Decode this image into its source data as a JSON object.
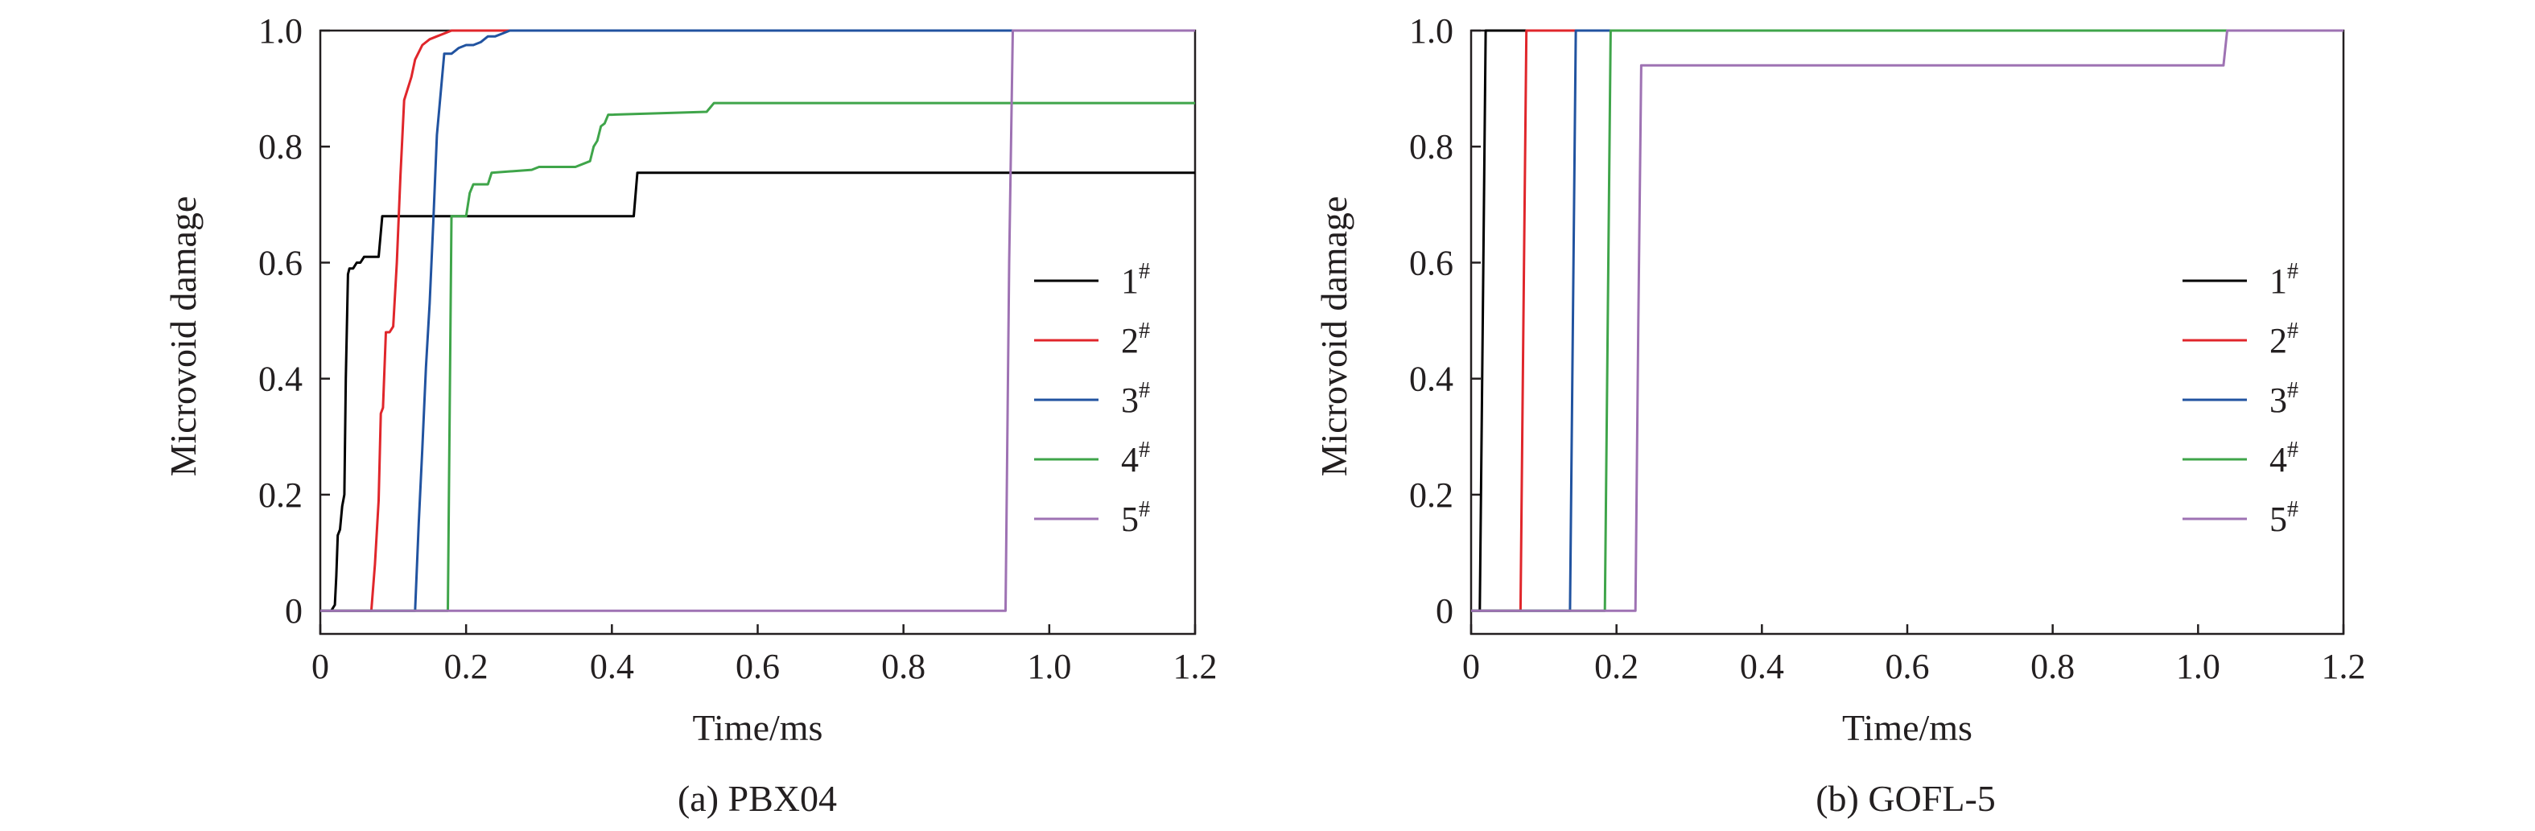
{
  "chart_data": [
    {
      "type": "line",
      "title": "(a) PBX04",
      "xlabel": "Time/ms",
      "ylabel": "Microvoid damage",
      "xlim": [
        0,
        1.2
      ],
      "ylim": [
        -0.04,
        1.0
      ],
      "xticks": [
        "0",
        "0.2",
        "0.4",
        "0.6",
        "0.8",
        "1.0",
        "1.2"
      ],
      "yticks": [
        "0",
        "0.2",
        "0.4",
        "0.6",
        "0.8",
        "1.0"
      ],
      "legend_position": "right-middle",
      "series": [
        {
          "name": "1",
          "color": "#000000",
          "x": [
            0,
            0.015,
            0.02,
            0.022,
            0.024,
            0.027,
            0.03,
            0.033,
            0.035,
            0.038,
            0.04,
            0.045,
            0.05,
            0.055,
            0.06,
            0.065,
            0.07,
            0.08,
            0.085,
            0.09,
            0.1,
            0.43,
            0.435,
            1.2
          ],
          "y": [
            0,
            0,
            0.01,
            0.06,
            0.13,
            0.14,
            0.18,
            0.2,
            0.4,
            0.58,
            0.59,
            0.59,
            0.6,
            0.6,
            0.61,
            0.61,
            0.61,
            0.61,
            0.68,
            0.68,
            0.68,
            0.68,
            0.755,
            0.755
          ]
        },
        {
          "name": "2",
          "color": "#e0262b",
          "x": [
            0,
            0.07,
            0.075,
            0.08,
            0.083,
            0.086,
            0.09,
            0.095,
            0.1,
            0.105,
            0.11,
            0.115,
            0.12,
            0.125,
            0.13,
            0.14,
            0.15,
            0.16,
            0.17,
            0.18,
            0.19,
            1.2
          ],
          "y": [
            0,
            0,
            0.08,
            0.19,
            0.34,
            0.35,
            0.48,
            0.48,
            0.49,
            0.6,
            0.75,
            0.88,
            0.9,
            0.92,
            0.95,
            0.975,
            0.985,
            0.99,
            0.995,
            1.0,
            1.0,
            1.0
          ]
        },
        {
          "name": "3",
          "color": "#2153a0",
          "x": [
            0,
            0.13,
            0.135,
            0.14,
            0.145,
            0.15,
            0.155,
            0.16,
            0.17,
            0.18,
            0.185,
            0.19,
            0.2,
            0.21,
            0.22,
            0.23,
            0.24,
            0.25,
            0.26,
            1.2
          ],
          "y": [
            0,
            0,
            0.15,
            0.28,
            0.42,
            0.53,
            0.67,
            0.82,
            0.96,
            0.96,
            0.965,
            0.97,
            0.975,
            0.975,
            0.98,
            0.99,
            0.99,
            0.995,
            1.0,
            1.0
          ]
        },
        {
          "name": "4",
          "color": "#3fa54a",
          "x": [
            0,
            0.175,
            0.18,
            0.2,
            0.205,
            0.21,
            0.23,
            0.235,
            0.29,
            0.3,
            0.35,
            0.37,
            0.375,
            0.38,
            0.385,
            0.39,
            0.395,
            0.4,
            0.53,
            0.54,
            1.2
          ],
          "y": [
            0,
            0,
            0.68,
            0.68,
            0.72,
            0.735,
            0.735,
            0.755,
            0.76,
            0.765,
            0.765,
            0.775,
            0.8,
            0.81,
            0.835,
            0.84,
            0.855,
            0.855,
            0.86,
            0.875,
            0.875
          ]
        },
        {
          "name": "5",
          "color": "#9e72b3",
          "x": [
            0,
            0.94,
            0.945,
            0.95,
            1.2
          ],
          "y": [
            0,
            0,
            0.6,
            1.0,
            1.0
          ]
        }
      ]
    },
    {
      "type": "line",
      "title": "(b) GOFL-5",
      "xlabel": "Time/ms",
      "ylabel": "Microvoid damage",
      "xlim": [
        0,
        1.2
      ],
      "ylim": [
        -0.04,
        1.0
      ],
      "xticks": [
        "0",
        "0.2",
        "0.4",
        "0.6",
        "0.8",
        "1.0",
        "1.2"
      ],
      "yticks": [
        "0",
        "0.2",
        "0.4",
        "0.6",
        "0.8",
        "1.0"
      ],
      "legend_position": "right-middle",
      "series": [
        {
          "name": "1",
          "color": "#000000",
          "x": [
            0,
            0.012,
            0.016,
            0.02,
            1.2
          ],
          "y": [
            0,
            0,
            0.5,
            1.0,
            1.0
          ]
        },
        {
          "name": "2",
          "color": "#e0262b",
          "x": [
            0,
            0.068,
            0.072,
            0.076,
            1.2
          ],
          "y": [
            0,
            0,
            0.5,
            1.0,
            1.0
          ]
        },
        {
          "name": "3",
          "color": "#2153a0",
          "x": [
            0,
            0.136,
            0.14,
            0.144,
            1.2
          ],
          "y": [
            0,
            0,
            0.5,
            1.0,
            1.0
          ]
        },
        {
          "name": "4",
          "color": "#3fa54a",
          "x": [
            0,
            0.184,
            0.188,
            0.192,
            1.2
          ],
          "y": [
            0,
            0,
            0.5,
            1.0,
            1.0
          ]
        },
        {
          "name": "5",
          "color": "#9e72b3",
          "x": [
            0,
            0.226,
            0.23,
            0.234,
            1.035,
            1.04,
            1.2
          ],
          "y": [
            0,
            0,
            0.5,
            0.94,
            0.94,
            1.0,
            1.0
          ]
        }
      ]
    }
  ]
}
